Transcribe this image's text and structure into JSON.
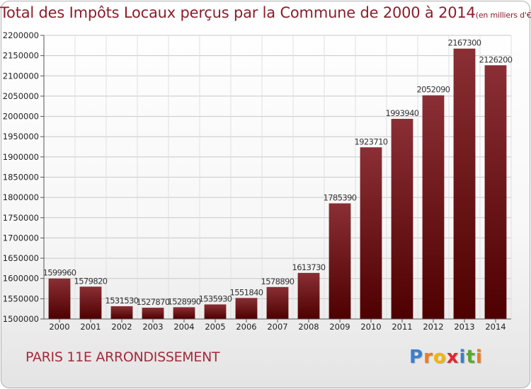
{
  "chart_data": {
    "type": "bar",
    "title": "Total des Impôts Locaux perçus par la Commune de 2000 à 2014",
    "title_unit": "(en milliers d'€)",
    "categories": [
      "2000",
      "2001",
      "2002",
      "2003",
      "2004",
      "2005",
      "2006",
      "2007",
      "2008",
      "2009",
      "2010",
      "2011",
      "2012",
      "2013",
      "2014"
    ],
    "values": [
      1599960,
      1579820,
      1531530,
      1527870,
      1528990,
      1535930,
      1551840,
      1578890,
      1613730,
      1785390,
      1923710,
      1993940,
      2052090,
      2167300,
      2126200
    ],
    "value_labels": [
      "1599960",
      "1579820",
      "1531530",
      "1527870",
      "1528990",
      "1535930",
      "1551840",
      "1578890",
      "1613730",
      "1785390",
      "1923710",
      "1993940",
      "2052090",
      "2167300",
      "2126200"
    ],
    "ylim": [
      1500000,
      2200000
    ],
    "yticks": [
      1500000,
      1550000,
      1600000,
      1650000,
      1700000,
      1750000,
      1800000,
      1850000,
      1900000,
      1950000,
      2000000,
      2050000,
      2100000,
      2150000,
      2200000
    ],
    "ytick_labels": [
      "1500000",
      "1550000",
      "1600000",
      "1650000",
      "1700000",
      "1750000",
      "1800000",
      "1850000",
      "1900000",
      "1950000",
      "2000000",
      "2050000",
      "2100000",
      "2150000",
      "2200000"
    ],
    "xlabel": "",
    "ylabel": "",
    "grid": true,
    "bar_color_top": "#8a2f35",
    "bar_color_bottom": "#4e0000"
  },
  "footer": {
    "commune": "PARIS 11E  ARRONDISSEMENT",
    "logo_letters": [
      "P",
      "r",
      "o",
      "x",
      "i",
      "t",
      "i"
    ],
    "logo_colors": [
      "#3a7fd0",
      "#f07b1d",
      "#f2b705",
      "#e2262f",
      "#3a7fd0",
      "#5aa832",
      "#f07b1d"
    ]
  }
}
